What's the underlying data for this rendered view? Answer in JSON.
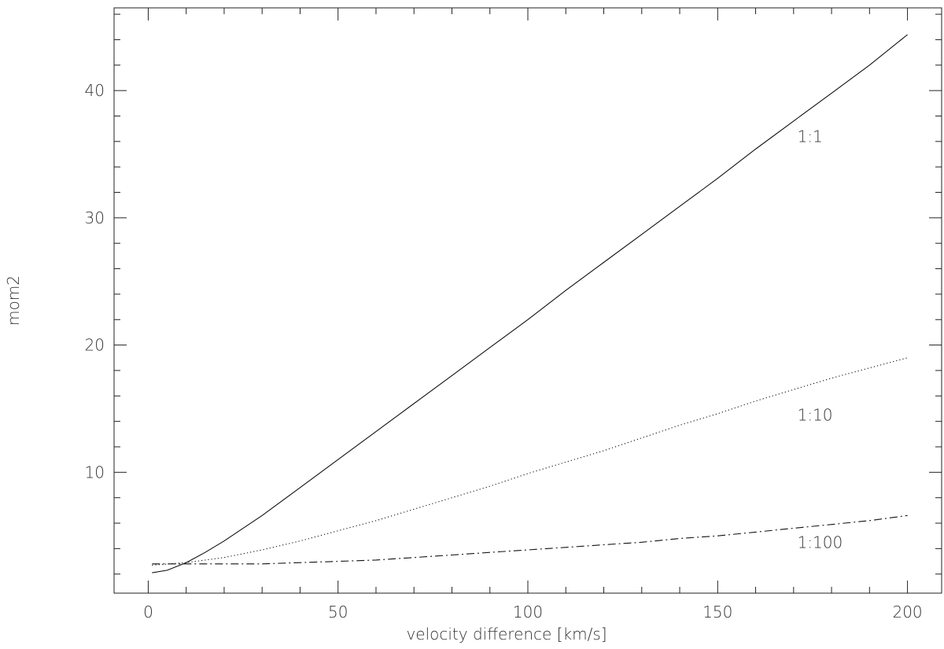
{
  "chart_data": {
    "type": "line",
    "title": "",
    "xlabel": "velocity difference [km/s]",
    "ylabel": "mom2",
    "xlim": [
      -9,
      209
    ],
    "ylim": [
      0.5,
      46.5
    ],
    "x_ticks": [
      0,
      50,
      100,
      150,
      200
    ],
    "y_ticks": [
      10,
      20,
      30,
      40
    ],
    "grid": false,
    "legend": "none",
    "series": [
      {
        "name": "1:1",
        "style": "solid",
        "x": [
          1,
          5,
          10,
          15,
          20,
          30,
          40,
          50,
          60,
          70,
          80,
          90,
          100,
          110,
          120,
          130,
          140,
          150,
          160,
          170,
          180,
          190,
          200
        ],
        "y": [
          2.1,
          2.3,
          2.9,
          3.7,
          4.6,
          6.6,
          8.8,
          11.0,
          13.2,
          15.4,
          17.6,
          19.8,
          22.0,
          24.3,
          26.5,
          28.7,
          30.9,
          33.1,
          35.4,
          37.6,
          39.8,
          42.0,
          44.4
        ]
      },
      {
        "name": "1:10",
        "style": "dotted",
        "x": [
          1,
          10,
          20,
          30,
          40,
          50,
          60,
          70,
          80,
          90,
          100,
          110,
          120,
          130,
          140,
          150,
          160,
          170,
          180,
          190,
          200
        ],
        "y": [
          2.7,
          2.9,
          3.3,
          3.9,
          4.6,
          5.4,
          6.2,
          7.1,
          8.0,
          8.9,
          9.9,
          10.8,
          11.7,
          12.7,
          13.7,
          14.6,
          15.6,
          16.5,
          17.4,
          18.2,
          19.0
        ]
      },
      {
        "name": "1:100",
        "style": "dash-dot",
        "x": [
          1,
          10,
          20,
          30,
          40,
          50,
          60,
          70,
          80,
          90,
          100,
          110,
          120,
          130,
          140,
          150,
          160,
          170,
          180,
          190,
          200
        ],
        "y": [
          2.8,
          2.8,
          2.8,
          2.8,
          2.9,
          3.0,
          3.1,
          3.3,
          3.5,
          3.7,
          3.9,
          4.1,
          4.3,
          4.5,
          4.8,
          5.0,
          5.3,
          5.6,
          5.9,
          6.2,
          6.6
        ]
      }
    ],
    "annotations": [
      {
        "text": "1:1",
        "x": 171,
        "y": 36.4
      },
      {
        "text": "1:10",
        "x": 171,
        "y": 14.5
      },
      {
        "text": "1:100",
        "x": 171,
        "y": 4.5
      }
    ]
  }
}
